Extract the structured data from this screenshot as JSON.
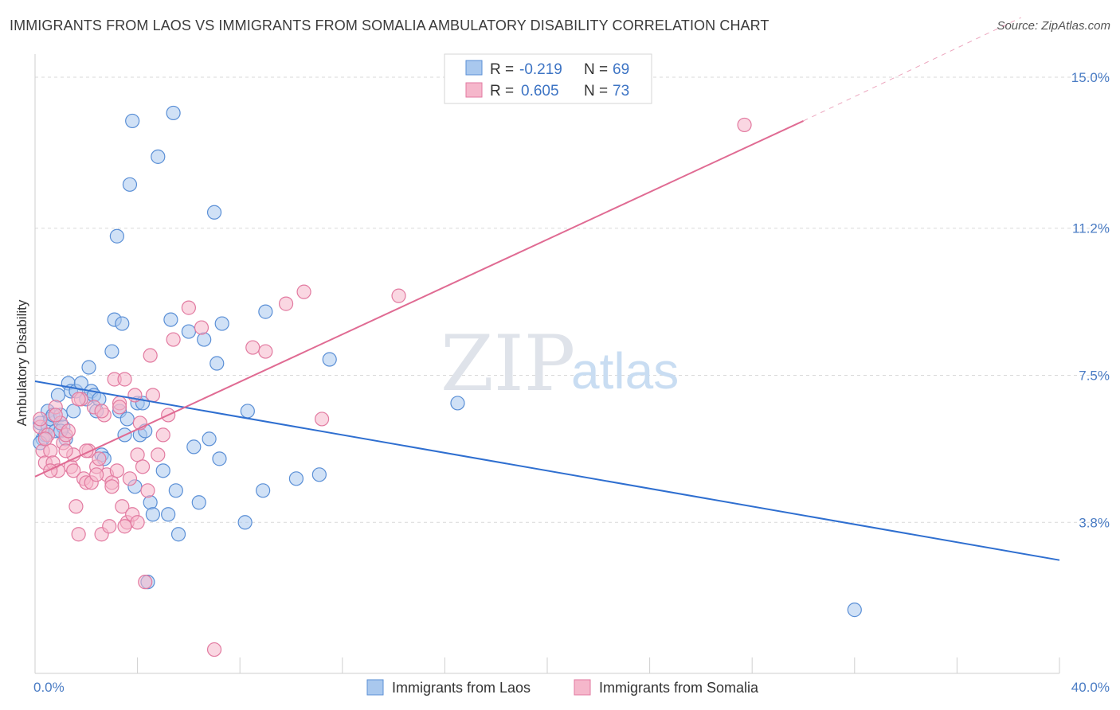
{
  "title": "IMMIGRANTS FROM LAOS VS IMMIGRANTS FROM SOMALIA AMBULATORY DISABILITY CORRELATION CHART",
  "source": "Source: ZipAtlas.com",
  "watermark": {
    "zip": "ZIP",
    "atlas": "atlas"
  },
  "legend": {
    "r_label": "R =",
    "n_label": "N =",
    "laos": {
      "r": "-0.219",
      "n": "69"
    },
    "somalia": {
      "r": "0.605",
      "n": "73"
    }
  },
  "colors": {
    "laos_fill": "#a9c8ee",
    "laos_stroke": "#5a8fd6",
    "laos_line": "#2f6fd0",
    "somalia_fill": "#f5b7cb",
    "somalia_stroke": "#e27aa0",
    "somalia_line": "#e06b93",
    "grid": "#d9d9d9",
    "tick_text": "#4a7cc4"
  },
  "chart_data": {
    "type": "scatter",
    "xlabel": "",
    "ylabel": "Ambulatory Disability",
    "xlim": [
      0,
      40
    ],
    "ylim": [
      0,
      15.5
    ],
    "x_tick_labels": [
      {
        "value": 0,
        "label": "0.0%"
      },
      {
        "value": 40,
        "label": "40.0%"
      }
    ],
    "y_tick_labels": [
      {
        "value": 3.8,
        "label": "3.8%"
      },
      {
        "value": 7.5,
        "label": "7.5%"
      },
      {
        "value": 11.2,
        "label": "11.2%"
      },
      {
        "value": 15.0,
        "label": "15.0%"
      }
    ],
    "grid": true,
    "legend_position": "top-center",
    "series": [
      {
        "name": "Immigrants from Laos",
        "color": "#5a8fd6",
        "trend": {
          "x": [
            0,
            40
          ],
          "y": [
            7.35,
            2.85
          ]
        },
        "points": [
          [
            0.2,
            6.3
          ],
          [
            0.3,
            5.9
          ],
          [
            0.4,
            6.0
          ],
          [
            0.5,
            6.6
          ],
          [
            0.5,
            6.2
          ],
          [
            0.6,
            6.4
          ],
          [
            0.7,
            6.5
          ],
          [
            0.8,
            6.1
          ],
          [
            0.9,
            7.0
          ],
          [
            1.0,
            6.5
          ],
          [
            1.1,
            6.2
          ],
          [
            1.2,
            5.9
          ],
          [
            1.3,
            7.3
          ],
          [
            1.4,
            7.1
          ],
          [
            1.5,
            6.6
          ],
          [
            1.6,
            7.1
          ],
          [
            1.8,
            7.3
          ],
          [
            2.0,
            6.9
          ],
          [
            2.1,
            7.7
          ],
          [
            2.2,
            7.1
          ],
          [
            2.3,
            7.0
          ],
          [
            2.4,
            6.6
          ],
          [
            2.6,
            5.5
          ],
          [
            2.7,
            5.4
          ],
          [
            3.0,
            8.1
          ],
          [
            3.1,
            8.9
          ],
          [
            3.2,
            11.0
          ],
          [
            3.3,
            6.6
          ],
          [
            3.4,
            8.8
          ],
          [
            3.5,
            6.0
          ],
          [
            3.6,
            6.4
          ],
          [
            3.7,
            12.3
          ],
          [
            3.8,
            13.9
          ],
          [
            4.0,
            6.8
          ],
          [
            4.1,
            6.0
          ],
          [
            4.2,
            6.8
          ],
          [
            4.3,
            6.1
          ],
          [
            4.5,
            4.3
          ],
          [
            4.6,
            4.0
          ],
          [
            4.8,
            13.0
          ],
          [
            5.0,
            5.1
          ],
          [
            5.2,
            4.0
          ],
          [
            5.3,
            8.9
          ],
          [
            5.4,
            14.1
          ],
          [
            5.5,
            4.6
          ],
          [
            5.6,
            3.5
          ],
          [
            6.0,
            8.6
          ],
          [
            6.2,
            5.7
          ],
          [
            6.4,
            4.3
          ],
          [
            6.6,
            8.4
          ],
          [
            6.8,
            5.9
          ],
          [
            7.0,
            11.6
          ],
          [
            7.1,
            7.8
          ],
          [
            7.2,
            5.4
          ],
          [
            7.3,
            8.8
          ],
          [
            8.2,
            3.8
          ],
          [
            8.3,
            6.6
          ],
          [
            8.9,
            4.6
          ],
          [
            9.0,
            9.1
          ],
          [
            10.2,
            4.9
          ],
          [
            11.1,
            5.0
          ],
          [
            11.5,
            7.9
          ],
          [
            16.5,
            6.8
          ],
          [
            32.0,
            1.6
          ],
          [
            0.2,
            5.8
          ],
          [
            1.0,
            6.1
          ],
          [
            2.5,
            6.9
          ],
          [
            3.9,
            4.7
          ],
          [
            4.4,
            2.3
          ]
        ]
      },
      {
        "name": "Immigrants from Somalia",
        "color": "#e27aa0",
        "trend": {
          "x": [
            0,
            30.0
          ],
          "y": [
            4.95,
            13.9
          ]
        },
        "trend_dashed": {
          "x": [
            30.0,
            38.5
          ],
          "y": [
            13.9,
            16.5
          ]
        },
        "points": [
          [
            0.2,
            6.2
          ],
          [
            0.3,
            5.6
          ],
          [
            0.4,
            5.3
          ],
          [
            0.5,
            6.0
          ],
          [
            0.6,
            5.6
          ],
          [
            0.7,
            5.3
          ],
          [
            0.8,
            6.7
          ],
          [
            0.9,
            5.1
          ],
          [
            1.0,
            6.3
          ],
          [
            1.1,
            5.8
          ],
          [
            1.2,
            6.0
          ],
          [
            1.3,
            6.1
          ],
          [
            1.4,
            5.2
          ],
          [
            1.5,
            5.1
          ],
          [
            1.6,
            4.2
          ],
          [
            1.7,
            3.5
          ],
          [
            1.8,
            6.9
          ],
          [
            1.9,
            4.9
          ],
          [
            2.0,
            4.8
          ],
          [
            2.1,
            5.6
          ],
          [
            2.2,
            4.8
          ],
          [
            2.3,
            6.7
          ],
          [
            2.4,
            5.2
          ],
          [
            2.5,
            5.4
          ],
          [
            2.6,
            3.5
          ],
          [
            2.7,
            6.5
          ],
          [
            2.8,
            5.0
          ],
          [
            2.9,
            3.7
          ],
          [
            3.0,
            4.8
          ],
          [
            3.1,
            7.4
          ],
          [
            3.2,
            5.1
          ],
          [
            3.3,
            6.8
          ],
          [
            3.4,
            4.2
          ],
          [
            3.5,
            7.4
          ],
          [
            3.6,
            3.8
          ],
          [
            3.7,
            4.9
          ],
          [
            3.8,
            4.0
          ],
          [
            3.9,
            7.0
          ],
          [
            4.0,
            5.5
          ],
          [
            4.1,
            6.3
          ],
          [
            4.2,
            5.2
          ],
          [
            4.3,
            2.3
          ],
          [
            4.4,
            4.6
          ],
          [
            4.5,
            8.0
          ],
          [
            4.6,
            7.0
          ],
          [
            4.8,
            5.5
          ],
          [
            5.0,
            6.0
          ],
          [
            5.2,
            6.5
          ],
          [
            5.4,
            8.4
          ],
          [
            6.0,
            9.2
          ],
          [
            6.5,
            8.7
          ],
          [
            7.0,
            0.6
          ],
          [
            8.5,
            8.2
          ],
          [
            9.0,
            8.1
          ],
          [
            9.8,
            9.3
          ],
          [
            10.5,
            9.6
          ],
          [
            11.2,
            6.4
          ],
          [
            14.2,
            9.5
          ],
          [
            27.7,
            13.8
          ],
          [
            0.2,
            6.4
          ],
          [
            0.4,
            5.9
          ],
          [
            0.8,
            6.5
          ],
          [
            1.5,
            5.5
          ],
          [
            2.0,
            5.6
          ],
          [
            2.6,
            6.6
          ],
          [
            3.0,
            4.7
          ],
          [
            3.5,
            3.7
          ],
          [
            4.0,
            3.8
          ],
          [
            0.6,
            5.1
          ],
          [
            1.2,
            5.6
          ],
          [
            2.4,
            5.0
          ],
          [
            3.3,
            6.7
          ],
          [
            1.7,
            6.9
          ]
        ]
      }
    ]
  },
  "bottom_legend": {
    "laos_label": "Immigrants from Laos",
    "somalia_label": "Immigrants from Somalia"
  }
}
